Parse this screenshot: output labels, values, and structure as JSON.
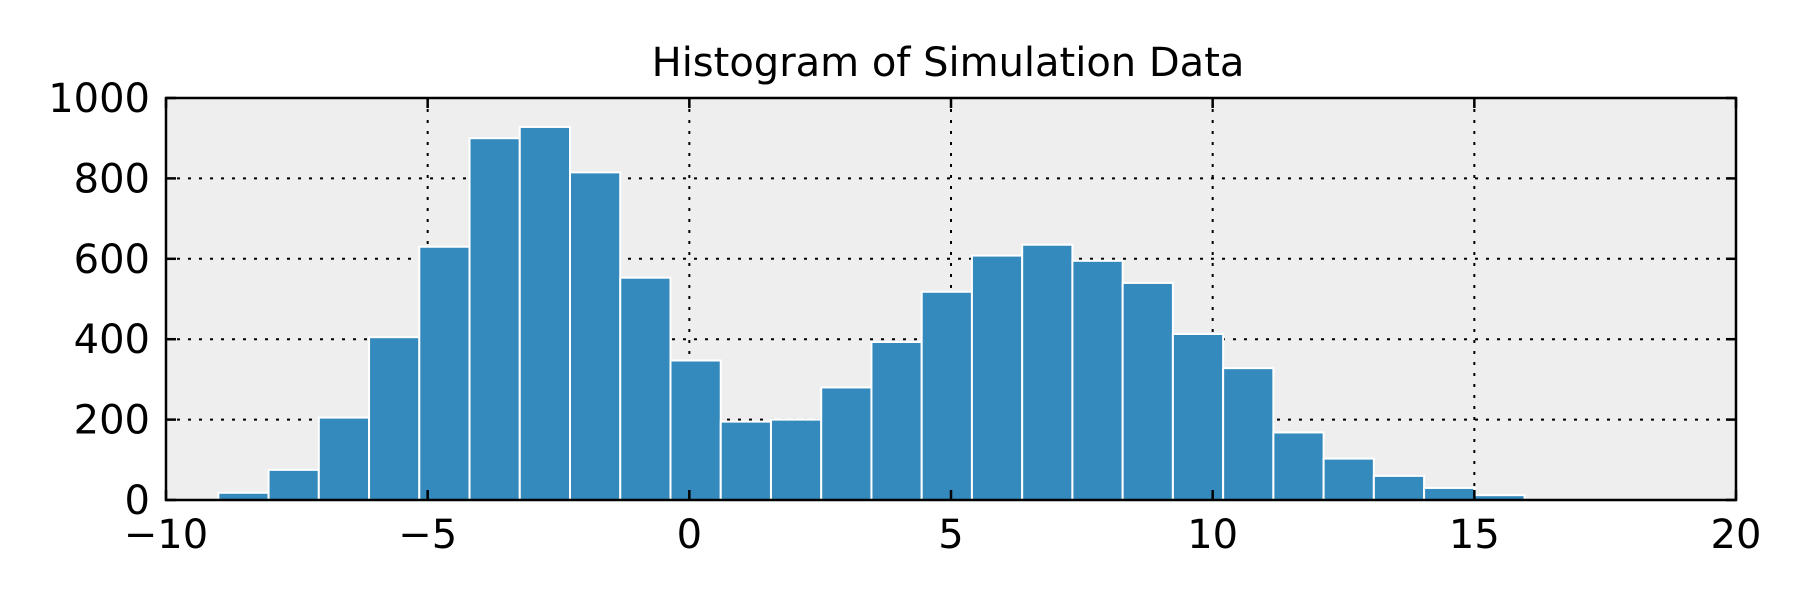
{
  "chart_data": {
    "type": "bar",
    "title": "Histogram of Simulation Data",
    "xlabel": "",
    "ylabel": "",
    "xlim": [
      -10,
      20
    ],
    "ylim": [
      0,
      1000
    ],
    "x_ticks": [
      "−10",
      "−5",
      "0",
      "5",
      "10",
      "15",
      "20"
    ],
    "y_ticks": [
      "0",
      "200",
      "400",
      "600",
      "800",
      "1000"
    ],
    "grid": true,
    "background": "#eeeeee",
    "bar_color": "#348abd",
    "bin_width": 0.96,
    "bin_starts": [
      -9.0,
      -8.04,
      -7.08,
      -6.12,
      -5.16,
      -4.2,
      -3.24,
      -2.28,
      -1.32,
      -0.36,
      0.6,
      1.56,
      2.52,
      3.48,
      4.44,
      5.4,
      6.36,
      7.32,
      8.28,
      9.24,
      10.2,
      11.16,
      12.12,
      13.08,
      14.04,
      15.0
    ],
    "values": [
      18,
      75,
      205,
      405,
      630,
      900,
      928,
      815,
      553,
      347,
      195,
      200,
      280,
      393,
      518,
      608,
      635,
      595,
      540,
      413,
      328,
      168,
      103,
      60,
      30,
      12
    ]
  }
}
